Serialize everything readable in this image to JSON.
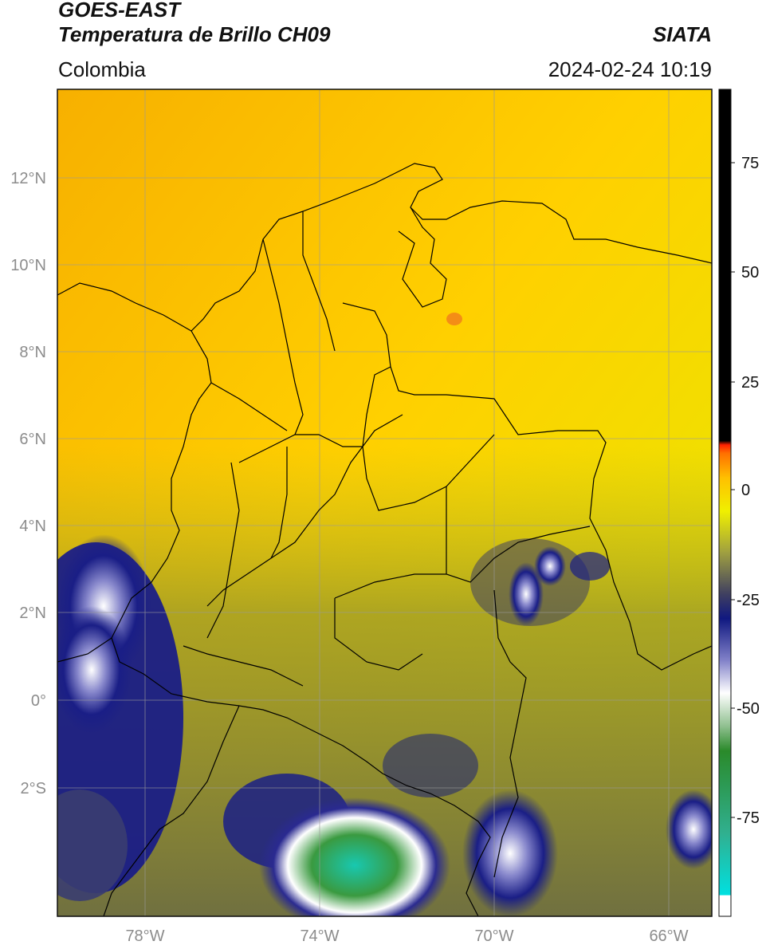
{
  "header": {
    "satellite": "GOES-EAST",
    "product": "Temperatura de Brillo CH09",
    "region": "Colombia",
    "organization": "SIATA",
    "datetime": "2024-02-24 10:19"
  },
  "map": {
    "lat_ticks": [
      "12°N",
      "10°N",
      "8°N",
      "6°N",
      "4°N",
      "2°N",
      "0°",
      "2°S"
    ],
    "lon_ticks": [
      "78°W",
      "74°W",
      "70°W",
      "66°W"
    ],
    "gridlines": true
  },
  "colorbar": {
    "ticks": [
      "75",
      "50",
      "25",
      "0",
      "-25",
      "-50",
      "-75"
    ],
    "units_range": [
      -95,
      90
    ]
  }
}
